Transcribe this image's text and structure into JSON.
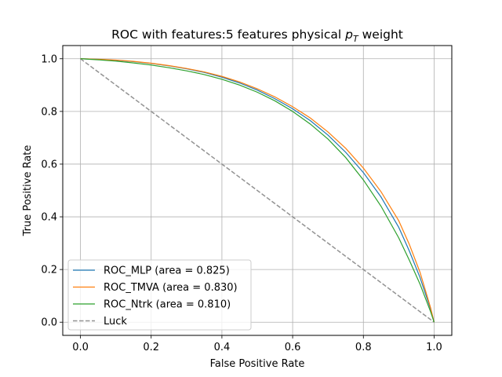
{
  "chart_data": {
    "type": "line",
    "title": "ROC with features:5 features physical ",
    "title_math": {
      "symbol": "p",
      "subscript": "T"
    },
    "title_suffix": " weight",
    "xlabel": "False Positive Rate",
    "ylabel": "True Positive Rate",
    "xlim": [
      -0.05,
      1.05
    ],
    "ylim": [
      -0.05,
      1.05
    ],
    "xticks": [
      0.0,
      0.2,
      0.4,
      0.6,
      0.8,
      1.0
    ],
    "yticks": [
      0.0,
      0.2,
      0.4,
      0.6,
      0.8,
      1.0
    ],
    "xtick_labels": [
      "0.0",
      "0.2",
      "0.4",
      "0.6",
      "0.8",
      "1.0"
    ],
    "ytick_labels": [
      "0.0",
      "0.2",
      "0.4",
      "0.6",
      "0.8",
      "1.0"
    ],
    "grid": true,
    "legend_position": "lower-left",
    "series": [
      {
        "name": "ROC_MLP (area = 0.825)",
        "color": "#1f77b4",
        "style": "solid",
        "x": [
          0.0,
          0.05,
          0.1,
          0.15,
          0.2,
          0.25,
          0.3,
          0.35,
          0.4,
          0.45,
          0.5,
          0.55,
          0.6,
          0.65,
          0.7,
          0.75,
          0.8,
          0.85,
          0.9,
          0.93,
          0.96,
          0.98,
          0.99,
          1.0
        ],
        "y": [
          1.0,
          0.998,
          0.994,
          0.989,
          0.982,
          0.973,
          0.962,
          0.948,
          0.93,
          0.908,
          0.881,
          0.848,
          0.81,
          0.765,
          0.71,
          0.645,
          0.568,
          0.475,
          0.36,
          0.27,
          0.17,
          0.09,
          0.05,
          0.0
        ]
      },
      {
        "name": "ROC_TMVA (area = 0.830)",
        "color": "#ff7f0e",
        "style": "solid",
        "x": [
          0.0,
          0.05,
          0.1,
          0.15,
          0.2,
          0.25,
          0.3,
          0.35,
          0.4,
          0.45,
          0.5,
          0.55,
          0.6,
          0.65,
          0.7,
          0.75,
          0.8,
          0.85,
          0.9,
          0.93,
          0.96,
          0.98,
          0.99,
          1.0
        ],
        "y": [
          1.0,
          0.998,
          0.995,
          0.99,
          0.983,
          0.974,
          0.963,
          0.95,
          0.933,
          0.912,
          0.886,
          0.855,
          0.818,
          0.775,
          0.722,
          0.66,
          0.585,
          0.495,
          0.385,
          0.295,
          0.19,
          0.1,
          0.055,
          0.0
        ]
      },
      {
        "name": "ROC_Ntrk (area = 0.810)",
        "color": "#2ca02c",
        "style": "solid",
        "x": [
          0.0,
          0.05,
          0.1,
          0.15,
          0.2,
          0.25,
          0.3,
          0.35,
          0.4,
          0.45,
          0.5,
          0.55,
          0.6,
          0.65,
          0.7,
          0.75,
          0.8,
          0.85,
          0.9,
          0.93,
          0.96,
          0.98,
          0.99,
          1.0
        ],
        "y": [
          1.0,
          0.996,
          0.991,
          0.984,
          0.976,
          0.966,
          0.954,
          0.94,
          0.922,
          0.9,
          0.873,
          0.84,
          0.8,
          0.752,
          0.695,
          0.625,
          0.54,
          0.44,
          0.32,
          0.235,
          0.145,
          0.075,
          0.04,
          0.0
        ]
      },
      {
        "name": "Luck",
        "color": "#929292",
        "style": "dashed",
        "x": [
          0.0,
          1.0
        ],
        "y": [
          1.0,
          0.0
        ]
      }
    ]
  }
}
